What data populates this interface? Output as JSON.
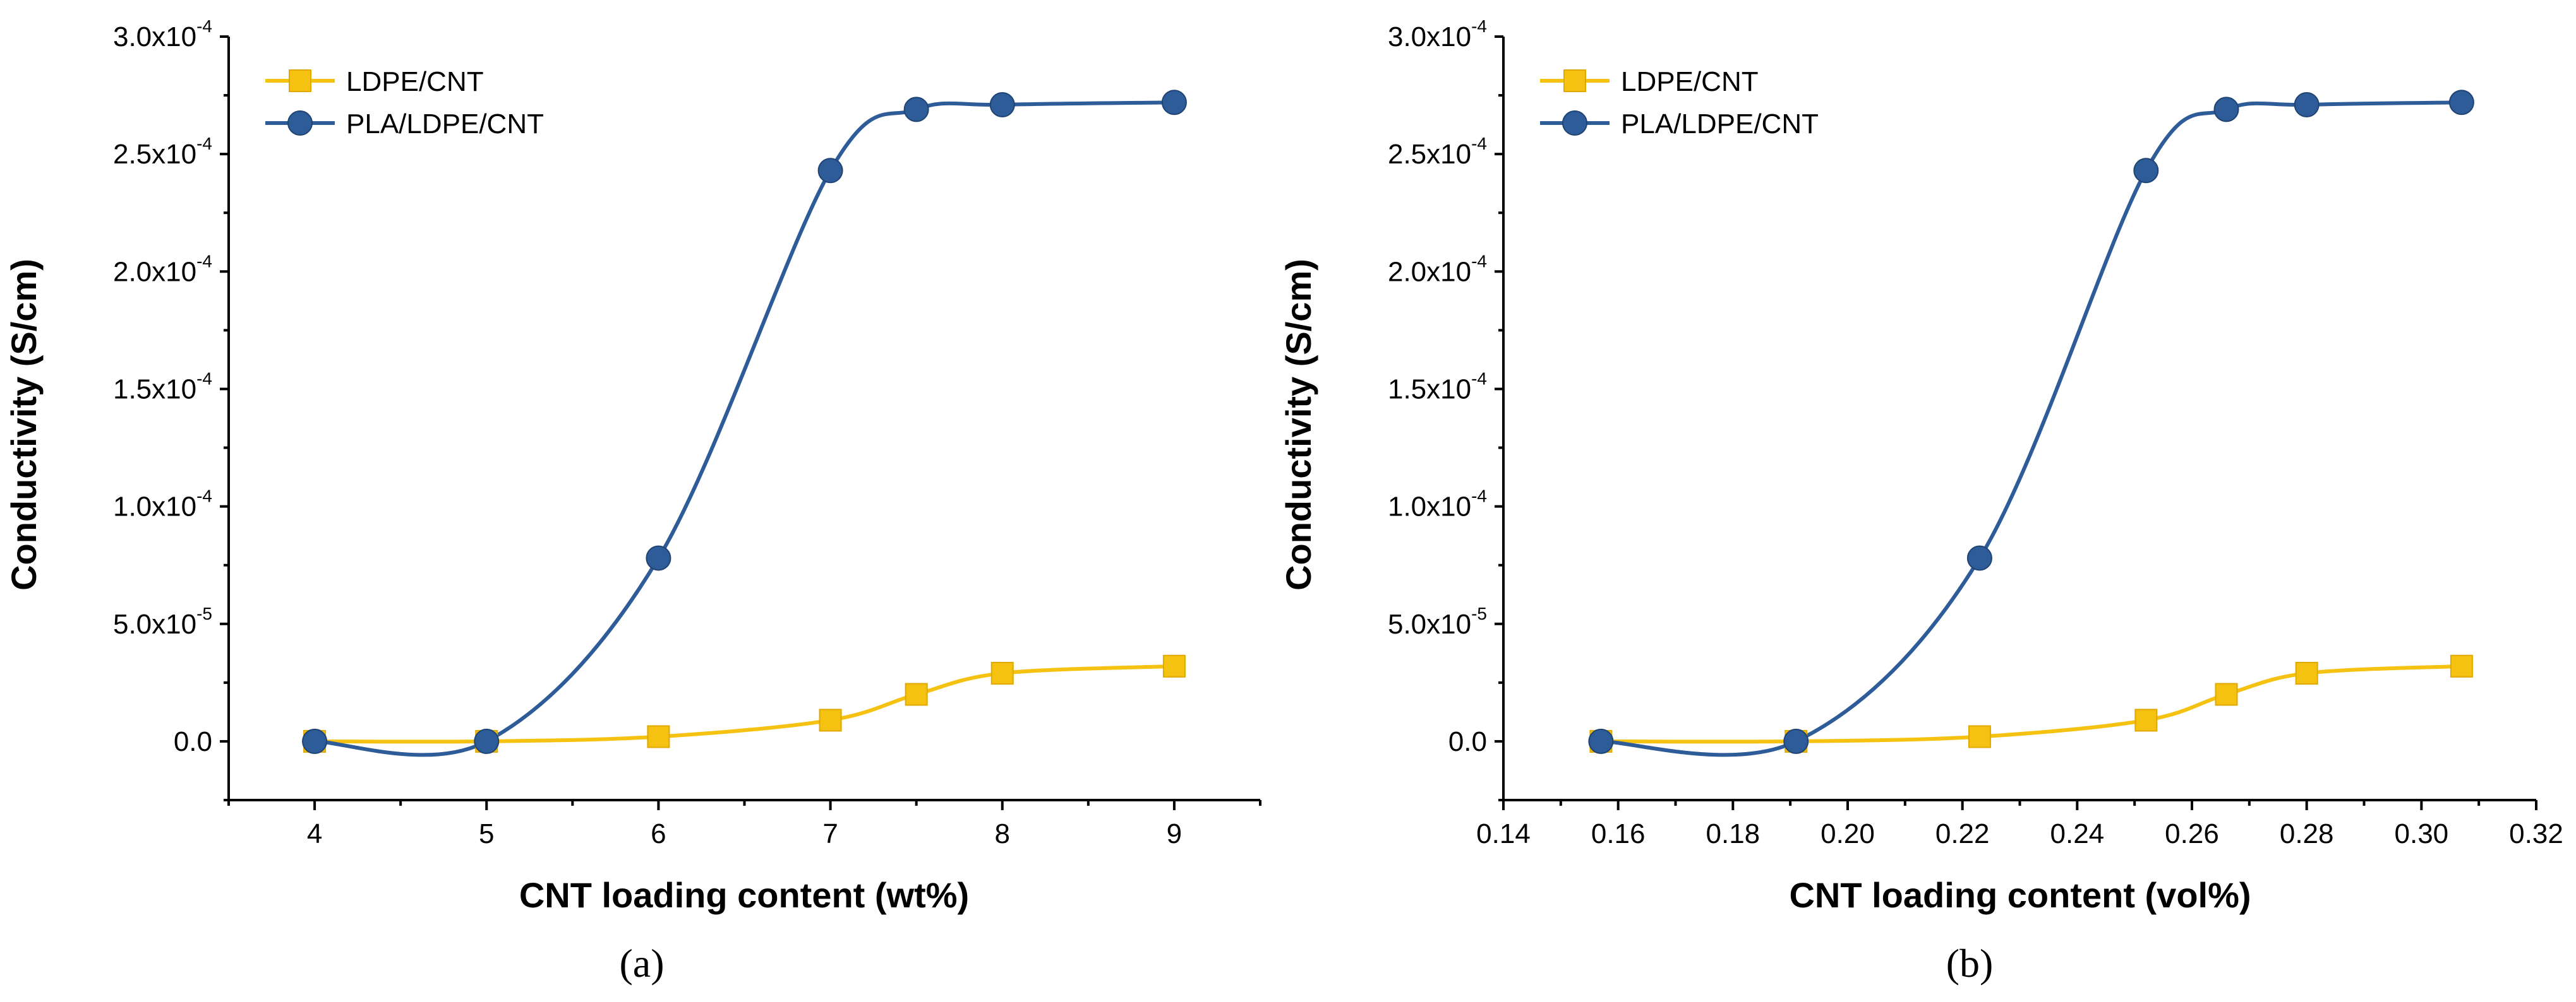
{
  "chart_data": [
    {
      "type": "line",
      "panel_label": "(a)",
      "xlabel": "CNT loading content (wt%)",
      "ylabel": "Conductivity (S/cm)",
      "xlim": [
        3.5,
        9.5
      ],
      "ylim": [
        -2.5e-05,
        0.0003
      ],
      "x_ticks": [
        4,
        5,
        6,
        7,
        8,
        9
      ],
      "x_tick_labels": [
        "4",
        "5",
        "6",
        "7",
        "8",
        "9"
      ],
      "y_ticks": [
        0,
        5e-05,
        0.0001,
        0.00015,
        0.0002,
        0.00025,
        0.0003
      ],
      "y_tick_labels": [
        {
          "mantissa": "0.0",
          "exp": ""
        },
        {
          "mantissa": "5.0x10",
          "exp": "-5"
        },
        {
          "mantissa": "1.0x10",
          "exp": "-4"
        },
        {
          "mantissa": "1.5x10",
          "exp": "-4"
        },
        {
          "mantissa": "2.0x10",
          "exp": "-4"
        },
        {
          "mantissa": "2.5x10",
          "exp": "-4"
        },
        {
          "mantissa": "3.0x10",
          "exp": "-4"
        }
      ],
      "legend_position": "top-left",
      "series": [
        {
          "name": "LDPE/CNT",
          "marker": "square",
          "color": "#F5C211",
          "x": [
            4,
            5,
            6,
            7,
            7.5,
            8,
            9
          ],
          "y": [
            0,
            0,
            2e-06,
            9e-06,
            2e-05,
            2.9e-05,
            3.2e-05
          ]
        },
        {
          "name": "PLA/LDPE/CNT",
          "marker": "circle",
          "color": "#2E5C99",
          "x": [
            4,
            5,
            6,
            7,
            7.5,
            8,
            9
          ],
          "y": [
            0,
            0,
            7.8e-05,
            0.000243,
            0.000269,
            0.000271,
            0.000272
          ]
        }
      ]
    },
    {
      "type": "line",
      "panel_label": "(b)",
      "xlabel": "CNT loading content (vol%)",
      "ylabel": "Conductivity (S/cm)",
      "xlim": [
        0.14,
        0.32
      ],
      "ylim": [
        -2.5e-05,
        0.0003
      ],
      "x_ticks": [
        0.14,
        0.16,
        0.18,
        0.2,
        0.22,
        0.24,
        0.26,
        0.28,
        0.3,
        0.32
      ],
      "x_tick_labels": [
        "0.14",
        "0.16",
        "0.18",
        "0.20",
        "0.22",
        "0.24",
        "0.26",
        "0.28",
        "0.30",
        "0.32"
      ],
      "y_ticks": [
        0,
        5e-05,
        0.0001,
        0.00015,
        0.0002,
        0.00025,
        0.0003
      ],
      "y_tick_labels": [
        {
          "mantissa": "0.0",
          "exp": ""
        },
        {
          "mantissa": "5.0x10",
          "exp": "-5"
        },
        {
          "mantissa": "1.0x10",
          "exp": "-4"
        },
        {
          "mantissa": "1.5x10",
          "exp": "-4"
        },
        {
          "mantissa": "2.0x10",
          "exp": "-4"
        },
        {
          "mantissa": "2.5x10",
          "exp": "-4"
        },
        {
          "mantissa": "3.0x10",
          "exp": "-4"
        }
      ],
      "legend_position": "top-left",
      "series": [
        {
          "name": "LDPE/CNT",
          "marker": "square",
          "color": "#F5C211",
          "x": [
            0.157,
            0.191,
            0.223,
            0.252,
            0.266,
            0.28,
            0.307
          ],
          "y": [
            0,
            0,
            2e-06,
            9e-06,
            2e-05,
            2.9e-05,
            3.2e-05
          ]
        },
        {
          "name": "PLA/LDPE/CNT",
          "marker": "circle",
          "color": "#2E5C99",
          "x": [
            0.157,
            0.191,
            0.223,
            0.252,
            0.266,
            0.28,
            0.307
          ],
          "y": [
            0,
            0,
            7.8e-05,
            0.000243,
            0.000269,
            0.000271,
            0.000272
          ]
        }
      ]
    }
  ]
}
